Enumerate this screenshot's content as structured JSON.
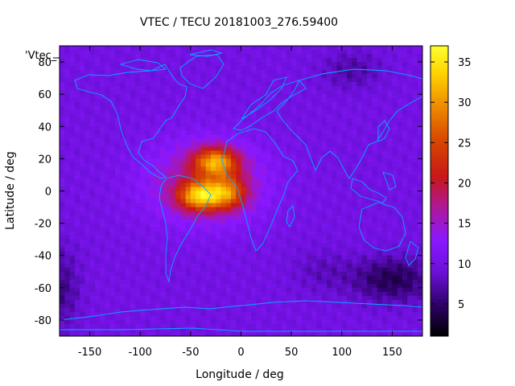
{
  "chart_data": {
    "type": "heatmap",
    "title": "VTEC / TECU 20181003_276.59400",
    "xlabel": "Longitude / deg",
    "ylabel": "Latitude / deg",
    "xlim": [
      -180,
      180
    ],
    "ylim": [
      -90,
      90
    ],
    "x_ticks": [
      -150,
      -100,
      -50,
      0,
      50,
      100,
      150
    ],
    "y_ticks": [
      -80,
      -60,
      -40,
      -20,
      0,
      20,
      40,
      60,
      80
    ],
    "cell_size_deg": [
      5,
      2.5
    ],
    "overlay_label": "'Vtec_",
    "colorbar": {
      "min": 1,
      "max": 37,
      "ticks": [
        5,
        10,
        15,
        20,
        25,
        30,
        35
      ],
      "palette": "black-blue-purple-red-orange-yellow"
    },
    "background_level": 10,
    "features": [
      {
        "name": "equatorial anomaly crest north",
        "lon": -25,
        "lat": 18,
        "peak": 34
      },
      {
        "name": "equatorial anomaly crest south",
        "lon": -40,
        "lat": -3,
        "peak": 36
      },
      {
        "name": "anomaly core",
        "lon": -15,
        "lat": 0,
        "peak": 33
      },
      {
        "name": "low region southeast",
        "lon": 150,
        "lat": -55,
        "peak": 2
      }
    ],
    "grid": false,
    "legend": "colorbar-right"
  }
}
